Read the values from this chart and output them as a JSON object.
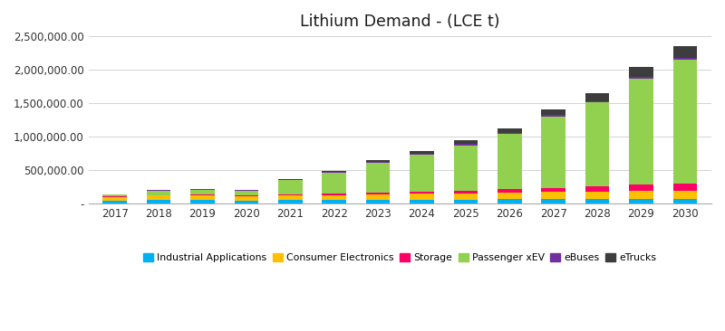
{
  "title": "Lithium Demand - (LCE t)",
  "years": [
    2017,
    2018,
    2019,
    2020,
    2021,
    2022,
    2023,
    2024,
    2025,
    2026,
    2027,
    2028,
    2029,
    2030
  ],
  "series": {
    "Industrial Applications": {
      "color": "#00B0F0",
      "values": [
        50000,
        55000,
        55000,
        50000,
        55000,
        58000,
        60000,
        63000,
        65000,
        68000,
        70000,
        72000,
        75000,
        78000
      ]
    },
    "Consumer Electronics": {
      "color": "#FFC000",
      "values": [
        55000,
        65000,
        68000,
        65000,
        70000,
        75000,
        82000,
        90000,
        95000,
        100000,
        105000,
        110000,
        115000,
        120000
      ]
    },
    "Storage": {
      "color": "#FF0066",
      "values": [
        8000,
        10000,
        12000,
        12000,
        15000,
        20000,
        25000,
        30000,
        35000,
        50000,
        60000,
        80000,
        100000,
        110000
      ]
    },
    "Passenger xEV": {
      "color": "#92D050",
      "values": [
        25000,
        70000,
        75000,
        70000,
        210000,
        310000,
        450000,
        550000,
        680000,
        820000,
        1070000,
        1250000,
        1580000,
        1840000
      ]
    },
    "eBuses": {
      "color": "#7030A0",
      "values": [
        3000,
        5000,
        5000,
        5000,
        7000,
        8000,
        10000,
        12000,
        15000,
        18000,
        20000,
        22000,
        25000,
        28000
      ]
    },
    "eTrucks": {
      "color": "#3D3D3D",
      "values": [
        5000,
        8000,
        10000,
        8000,
        12000,
        18000,
        28000,
        40000,
        55000,
        75000,
        90000,
        115000,
        150000,
        180000
      ]
    }
  },
  "ylim": [
    0,
    2500000
  ],
  "yticks": [
    0,
    500000,
    1000000,
    1500000,
    2000000,
    2500000
  ],
  "ytick_labels": [
    "-",
    "500,000.00",
    "1,000,000.00",
    "1,500,000.00",
    "2,000,000.00",
    "2,500,000.00"
  ],
  "background_color": "#ffffff",
  "grid_color": "#d3d3d3",
  "legend_order": [
    "Industrial Applications",
    "Consumer Electronics",
    "Storage",
    "Passenger xEV",
    "eBuses",
    "eTrucks"
  ]
}
